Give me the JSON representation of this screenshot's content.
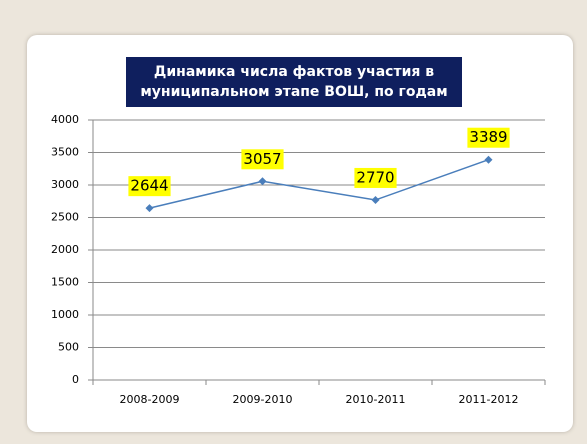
{
  "chart_data": {
    "type": "line",
    "title": "Динамика числа фактов участия в муниципальном этапе ВОШ, по годам",
    "categories": [
      "2008-2009",
      "2009-2010",
      "2010-2011",
      "2011-2012"
    ],
    "values": [
      2644,
      3057,
      2770,
      3389
    ],
    "color": "#4a7ebb",
    "label_color": "#ffff00",
    "ylim": [
      0,
      4000
    ],
    "yticks": [
      0,
      500,
      1000,
      1500,
      2000,
      2500,
      3000,
      3500,
      4000
    ],
    "grid": true
  }
}
